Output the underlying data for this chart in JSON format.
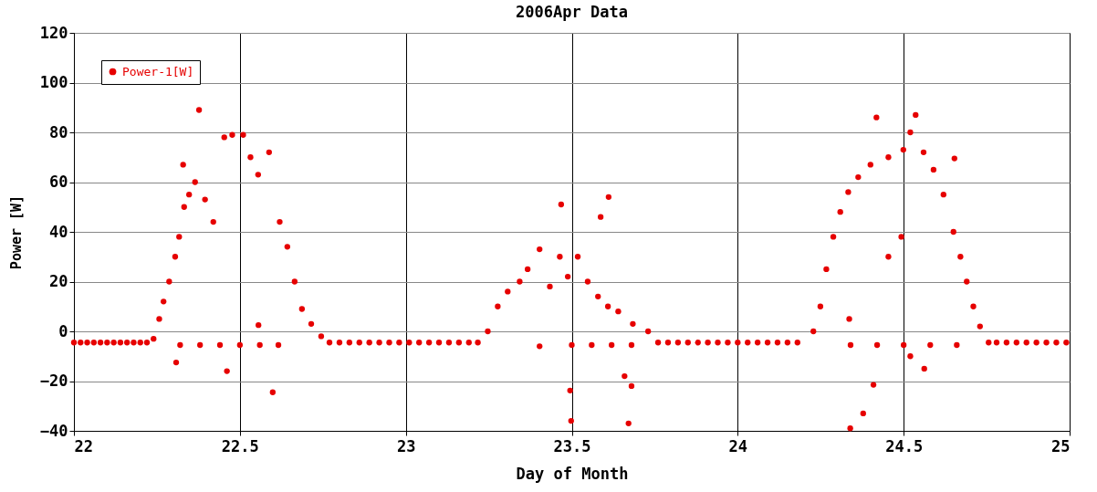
{
  "chart_data": {
    "type": "scatter",
    "title": "2006Apr Data",
    "xlabel": "Day of Month",
    "ylabel": "Power [W]",
    "xlim": [
      22,
      25
    ],
    "xticks": [
      22,
      {
        "value": 22.5,
        "label": "22.5"
      },
      23,
      {
        "value": 23.5,
        "label": "23.5"
      },
      24,
      {
        "value": 24.5,
        "label": "24.5"
      },
      25
    ],
    "ylim": [
      -40,
      120
    ],
    "yticks": [
      -40,
      -20,
      0,
      20,
      40,
      60,
      80,
      100,
      120
    ],
    "grid": true,
    "legend": "top left",
    "marker": "circle",
    "series": [
      {
        "name": "Power-1[W]",
        "color": "#e60000",
        "x": [
          22.0,
          22.02,
          22.04,
          22.06,
          22.08,
          22.1,
          22.12,
          22.14,
          22.16,
          22.18,
          22.2,
          22.22,
          22.24,
          22.257,
          22.27,
          22.287,
          22.305,
          22.317,
          22.332,
          22.347,
          22.365,
          22.377,
          22.329,
          22.395,
          22.42,
          22.453,
          22.477,
          22.51,
          22.532,
          22.555,
          22.588,
          22.62,
          22.643,
          22.665,
          22.687,
          22.715,
          22.745,
          22.32,
          22.38,
          22.44,
          22.5,
          22.56,
          22.616,
          22.308,
          22.461,
          22.599,
          22.556,
          22.77,
          22.8,
          22.83,
          22.86,
          22.89,
          22.92,
          22.95,
          22.98,
          23.01,
          23.04,
          23.07,
          23.1,
          23.13,
          23.16,
          23.19,
          23.217,
          23.247,
          23.277,
          23.307,
          23.343,
          23.367,
          23.403,
          23.434,
          23.464,
          23.488,
          23.518,
          23.548,
          23.579,
          23.609,
          23.64,
          23.684,
          23.73,
          23.76,
          23.468,
          23.587,
          23.611,
          23.5,
          23.56,
          23.62,
          23.68,
          23.498,
          23.495,
          23.659,
          23.68,
          23.671,
          23.403,
          23.79,
          23.82,
          23.85,
          23.88,
          23.91,
          23.94,
          23.97,
          24.0,
          24.03,
          24.06,
          24.09,
          24.12,
          24.15,
          24.18,
          24.228,
          24.249,
          24.267,
          24.288,
          24.309,
          24.333,
          24.363,
          24.4,
          24.454,
          24.499,
          24.52,
          24.536,
          24.56,
          24.59,
          24.62,
          24.65,
          24.671,
          24.69,
          24.71,
          24.73,
          24.756,
          24.418,
          24.653,
          24.34,
          24.42,
          24.5,
          24.58,
          24.66,
          24.339,
          24.378,
          24.409,
          24.454,
          24.493,
          24.52,
          24.562,
          24.336,
          24.78,
          24.81,
          24.84,
          24.87,
          24.9,
          24.93,
          24.96,
          24.99
        ],
        "values": [
          -4.5,
          -4.5,
          -4.5,
          -4.5,
          -4.5,
          -4.5,
          -4.5,
          -4.5,
          -4.5,
          -4.5,
          -4.5,
          -4.5,
          -3,
          5,
          12,
          20,
          30,
          38,
          50,
          55,
          60,
          89,
          67,
          53,
          44,
          78,
          79,
          79,
          70,
          63,
          72,
          44,
          34,
          20,
          9,
          3,
          -2,
          -5.5,
          -5.5,
          -5.5,
          -5.5,
          -5.5,
          -5.5,
          -12.5,
          -16,
          -24.5,
          2.5,
          -4.5,
          -4.5,
          -4.5,
          -4.5,
          -4.5,
          -4.5,
          -4.5,
          -4.5,
          -4.5,
          -4.5,
          -4.5,
          -4.5,
          -4.5,
          -4.5,
          -4.5,
          -4.5,
          0,
          10,
          16,
          20,
          25,
          33,
          18,
          30,
          22,
          30,
          20,
          14,
          10,
          8,
          3,
          0,
          -4.5,
          51,
          46,
          54,
          -5.5,
          -5.5,
          -5.5,
          -5.5,
          -36,
          -23.8,
          -18,
          -22,
          -37,
          -6,
          -4.5,
          -4.5,
          -4.5,
          -4.5,
          -4.5,
          -4.5,
          -4.5,
          -4.5,
          -4.5,
          -4.5,
          -4.5,
          -4.5,
          -4.5,
          -4.5,
          0,
          10,
          25,
          38,
          48,
          56,
          62,
          67,
          70,
          73,
          80,
          87,
          72,
          65,
          55,
          40,
          30,
          20,
          10,
          2,
          -4.5,
          86,
          69.5,
          -5.5,
          -5.5,
          -5.5,
          -5.5,
          -5.5,
          -39,
          -33,
          -21.5,
          30,
          38,
          -10,
          -15,
          5,
          -4.5,
          -4.5,
          -4.5,
          -4.5,
          -4.5,
          -4.5,
          -4.5,
          -4.5
        ]
      }
    ]
  }
}
